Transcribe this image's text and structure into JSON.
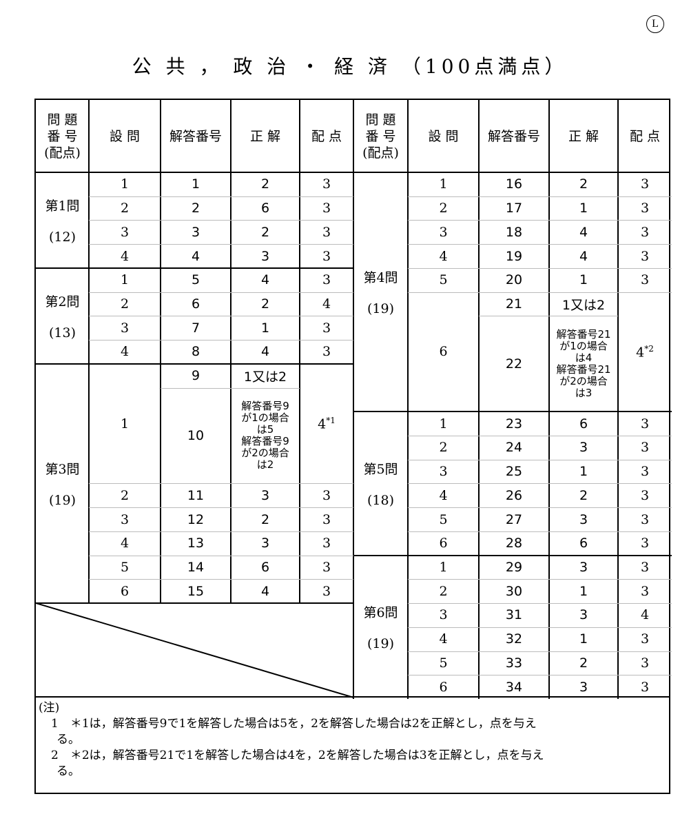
{
  "corner_mark": "L",
  "title": "公 共 ， 政 治 ・ 経 済 （100点満点）",
  "headers": {
    "group": [
      "問 題",
      "番 号",
      "(配点)"
    ],
    "question": "設 問",
    "answer_no": "解答番号",
    "correct": "正 解",
    "points": "配 点"
  },
  "left": [
    {
      "label": "第1問",
      "points": "(12)",
      "subs": [
        {
          "q": "1",
          "answers": [
            {
              "no": "1",
              "correct": "2"
            }
          ],
          "pts": "3"
        },
        {
          "q": "2",
          "answers": [
            {
              "no": "2",
              "correct": "6"
            }
          ],
          "pts": "3"
        },
        {
          "q": "3",
          "answers": [
            {
              "no": "3",
              "correct": "2"
            }
          ],
          "pts": "3"
        },
        {
          "q": "4",
          "answers": [
            {
              "no": "4",
              "correct": "3"
            }
          ],
          "pts": "3"
        }
      ]
    },
    {
      "label": "第2問",
      "points": "(13)",
      "subs": [
        {
          "q": "1",
          "answers": [
            {
              "no": "5",
              "correct": "4"
            }
          ],
          "pts": "3"
        },
        {
          "q": "2",
          "answers": [
            {
              "no": "6",
              "correct": "2"
            }
          ],
          "pts": "4"
        },
        {
          "q": "3",
          "answers": [
            {
              "no": "7",
              "correct": "1"
            }
          ],
          "pts": "3"
        },
        {
          "q": "4",
          "answers": [
            {
              "no": "8",
              "correct": "4"
            }
          ],
          "pts": "3"
        }
      ]
    },
    {
      "label": "第3問",
      "points": "(19)",
      "subs": [
        {
          "q": "1",
          "answers": [
            {
              "no": "9",
              "correct": "1又は2"
            },
            {
              "no": "10",
              "correct_lines": [
                "解答番号9",
                "が1の場合",
                "は5",
                "解答番号9",
                "が2の場合",
                "は2"
              ],
              "span": 4
            }
          ],
          "pts": "4",
          "pts_note": "*1"
        },
        {
          "q": "2",
          "answers": [
            {
              "no": "11",
              "correct": "3"
            }
          ],
          "pts": "3"
        },
        {
          "q": "3",
          "answers": [
            {
              "no": "12",
              "correct": "2"
            }
          ],
          "pts": "3"
        },
        {
          "q": "4",
          "answers": [
            {
              "no": "13",
              "correct": "3"
            }
          ],
          "pts": "3"
        },
        {
          "q": "5",
          "answers": [
            {
              "no": "14",
              "correct": "6"
            }
          ],
          "pts": "3"
        },
        {
          "q": "6",
          "answers": [
            {
              "no": "15",
              "correct": "4"
            }
          ],
          "pts": "3"
        }
      ]
    }
  ],
  "right": [
    {
      "label": "第4問",
      "points": "(19)",
      "subs": [
        {
          "q": "1",
          "answers": [
            {
              "no": "16",
              "correct": "2"
            }
          ],
          "pts": "3"
        },
        {
          "q": "2",
          "answers": [
            {
              "no": "17",
              "correct": "1"
            }
          ],
          "pts": "3"
        },
        {
          "q": "3",
          "answers": [
            {
              "no": "18",
              "correct": "4"
            }
          ],
          "pts": "3"
        },
        {
          "q": "4",
          "answers": [
            {
              "no": "19",
              "correct": "4"
            }
          ],
          "pts": "3"
        },
        {
          "q": "5",
          "answers": [
            {
              "no": "20",
              "correct": "1"
            }
          ],
          "pts": "3"
        },
        {
          "q": "6",
          "answers": [
            {
              "no": "21",
              "correct": "1又は2"
            },
            {
              "no": "22",
              "correct_lines": [
                "解答番号21",
                "が1の場合",
                "は4",
                "解答番号21",
                "が2の場合",
                "は3"
              ],
              "span": 4
            }
          ],
          "pts": "4",
          "pts_note": "*2"
        }
      ]
    },
    {
      "label": "第5問",
      "points": "(18)",
      "subs": [
        {
          "q": "1",
          "answers": [
            {
              "no": "23",
              "correct": "6"
            }
          ],
          "pts": "3"
        },
        {
          "q": "2",
          "answers": [
            {
              "no": "24",
              "correct": "3"
            }
          ],
          "pts": "3"
        },
        {
          "q": "3",
          "answers": [
            {
              "no": "25",
              "correct": "1"
            }
          ],
          "pts": "3"
        },
        {
          "q": "4",
          "answers": [
            {
              "no": "26",
              "correct": "2"
            }
          ],
          "pts": "3"
        },
        {
          "q": "5",
          "answers": [
            {
              "no": "27",
              "correct": "3"
            }
          ],
          "pts": "3"
        },
        {
          "q": "6",
          "answers": [
            {
              "no": "28",
              "correct": "6"
            }
          ],
          "pts": "3"
        }
      ]
    },
    {
      "label": "第6問",
      "points": "(19)",
      "subs": [
        {
          "q": "1",
          "answers": [
            {
              "no": "29",
              "correct": "3"
            }
          ],
          "pts": "3"
        },
        {
          "q": "2",
          "answers": [
            {
              "no": "30",
              "correct": "1"
            }
          ],
          "pts": "3"
        },
        {
          "q": "3",
          "answers": [
            {
              "no": "31",
              "correct": "3"
            }
          ],
          "pts": "4"
        },
        {
          "q": "4",
          "answers": [
            {
              "no": "32",
              "correct": "1"
            }
          ],
          "pts": "3"
        },
        {
          "q": "5",
          "answers": [
            {
              "no": "33",
              "correct": "2"
            }
          ],
          "pts": "3"
        },
        {
          "q": "6",
          "answers": [
            {
              "no": "34",
              "correct": "3"
            }
          ],
          "pts": "3"
        }
      ]
    }
  ],
  "notes": {
    "heading": "(注)",
    "items": [
      {
        "num": "1",
        "text": "＊1は，解答番号9で1を解答した場合は5を，2を解答した場合は2を正解とし，点を与え",
        "cont": "る。"
      },
      {
        "num": "2",
        "text": "＊2は，解答番号21で1を解答した場合は4を，2を解答した場合は3を正解とし，点を与え",
        "cont": "る。"
      }
    ]
  }
}
